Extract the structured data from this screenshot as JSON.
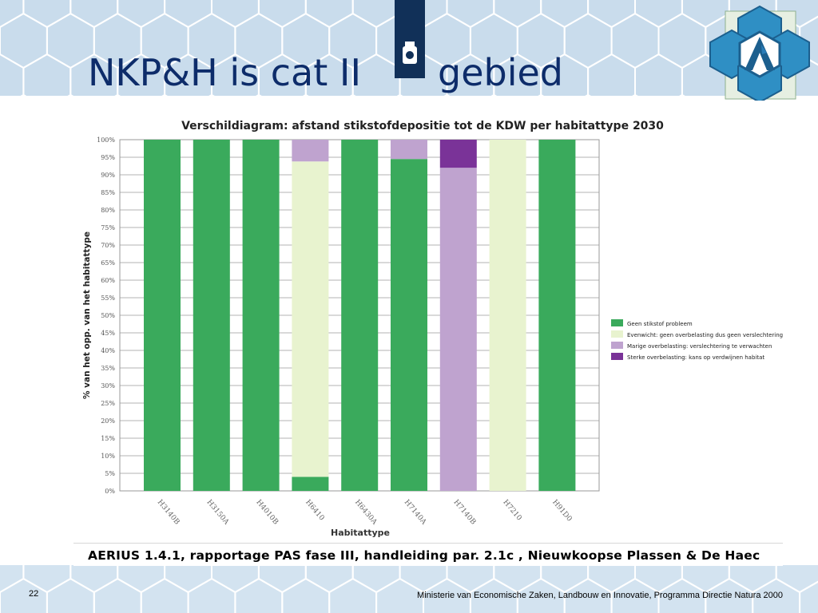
{
  "slide": {
    "title_part1": "NKP&H is cat II",
    "title_part2": "gebied",
    "page_number": "22",
    "footer": "Ministerie van Economische Zaken, Landbouw en Innovatie, Programma Directie Natura 2000",
    "caption": "AERIUS 1.4.1, rapportage PAS fase III,  handleiding par. 2.1c , Nieuwkoopse Plassen & De Haec",
    "colors": {
      "title": "#0d2c6a",
      "band": "#c9dcec",
      "logo_bar": "#113058"
    }
  },
  "chart_data": {
    "type": "bar",
    "stacked": true,
    "title": "Verschildiagram: afstand stikstofdepositie tot de KDW per habitattype 2030",
    "xlabel": "Habitattype",
    "ylabel": "% van het opp. van het habitattype",
    "ylim": [
      0,
      100
    ],
    "y_ticks": [
      "0%",
      "5%",
      "10%",
      "15%",
      "20%",
      "25%",
      "30%",
      "35%",
      "40%",
      "45%",
      "50%",
      "55%",
      "60%",
      "65%",
      "70%",
      "75%",
      "80%",
      "85%",
      "90%",
      "95%",
      "100%"
    ],
    "categories": [
      "H3140B",
      "H3150A",
      "H4010B",
      "H6410",
      "H6430A",
      "H7140A",
      "H7140B",
      "H7210",
      "H91D0"
    ],
    "grid": true,
    "legend_position": "right",
    "series": [
      {
        "name": "Geen stikstof probleem",
        "color": "#3aaa5c",
        "values": [
          100,
          100,
          100,
          4,
          100,
          94.5,
          0,
          0,
          100
        ]
      },
      {
        "name": "Evenwicht: geen overbelasting dus geen verslechtering",
        "color": "#e8f3cf",
        "values": [
          0,
          0,
          0,
          89.8,
          0,
          0,
          0,
          100,
          0
        ]
      },
      {
        "name": "Marige overbelasting: verslechtering te verwachten",
        "color": "#bfa3cf",
        "values": [
          0,
          0,
          0,
          6.2,
          0,
          5.5,
          92,
          0,
          0
        ]
      },
      {
        "name": "Sterke overbelasting: kans op verdwijnen habitat",
        "color": "#7a3398",
        "values": [
          0,
          0,
          0,
          0,
          0,
          0,
          8,
          0,
          0
        ]
      }
    ]
  }
}
